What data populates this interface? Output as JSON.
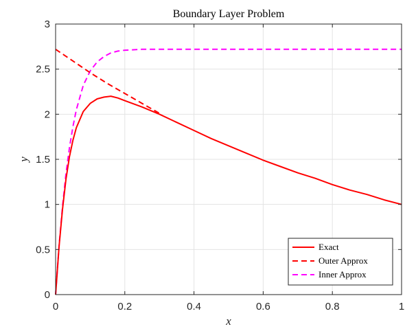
{
  "chart_data": {
    "type": "line",
    "title": "Boundary Layer Problem",
    "xlabel": "x",
    "ylabel": "y",
    "xlim": [
      0,
      1
    ],
    "ylim": [
      0,
      3
    ],
    "xticks": [
      0,
      0.2,
      0.4,
      0.6,
      0.8,
      1
    ],
    "xtick_labels": [
      "0",
      "0.2",
      "0.4",
      "0.6",
      "0.8",
      "1"
    ],
    "yticks": [
      0,
      0.5,
      1,
      1.5,
      2,
      2.5,
      3
    ],
    "ytick_labels": [
      "0",
      "0.5",
      "1",
      "1.5",
      "2",
      "2.5",
      "3"
    ],
    "grid": true,
    "legend_position": "bottom-right",
    "series": [
      {
        "name": "Exact",
        "color": "#ff0000",
        "style": "solid",
        "x": [
          0,
          0.01,
          0.02,
          0.03,
          0.04,
          0.05,
          0.06,
          0.08,
          0.1,
          0.12,
          0.14,
          0.16,
          0.18,
          0.2,
          0.25,
          0.3,
          0.35,
          0.4,
          0.45,
          0.5,
          0.55,
          0.6,
          0.65,
          0.7,
          0.75,
          0.8,
          0.85,
          0.9,
          0.95,
          1.0
        ],
        "y": [
          0,
          0.53,
          0.95,
          1.28,
          1.53,
          1.71,
          1.85,
          2.03,
          2.12,
          2.17,
          2.19,
          2.2,
          2.18,
          2.15,
          2.08,
          2.0,
          1.91,
          1.82,
          1.73,
          1.65,
          1.57,
          1.49,
          1.42,
          1.35,
          1.29,
          1.22,
          1.16,
          1.11,
          1.05,
          1.0
        ]
      },
      {
        "name": "Outer Approx",
        "color": "#ff0000",
        "style": "dashed",
        "x": [
          0,
          0.05,
          0.1,
          0.15,
          0.2,
          0.25,
          0.3
        ],
        "y": [
          2.72,
          2.59,
          2.46,
          2.34,
          2.23,
          2.12,
          2.01
        ]
      },
      {
        "name": "Inner Approx",
        "color": "#ff00ff",
        "style": "dashed",
        "x": [
          0,
          0.01,
          0.02,
          0.03,
          0.04,
          0.05,
          0.06,
          0.08,
          0.1,
          0.12,
          0.14,
          0.16,
          0.18,
          0.2,
          0.25,
          0.3,
          0.4,
          0.5,
          0.6,
          0.7,
          0.8,
          0.9,
          1.0
        ],
        "y": [
          0,
          0.54,
          0.98,
          1.34,
          1.63,
          1.86,
          2.05,
          2.32,
          2.48,
          2.58,
          2.64,
          2.68,
          2.7,
          2.71,
          2.72,
          2.72,
          2.72,
          2.72,
          2.72,
          2.72,
          2.72,
          2.72,
          2.72
        ]
      }
    ]
  }
}
